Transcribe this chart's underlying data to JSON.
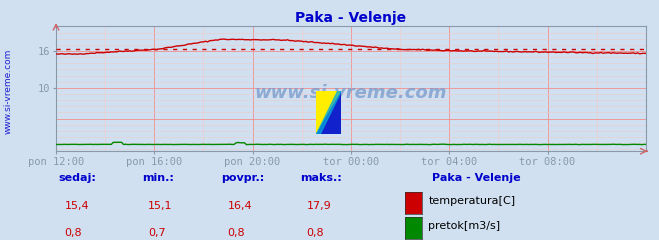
{
  "title": "Paka - Velenje",
  "title_color": "#0000cc",
  "bg_color": "#d0e0f0",
  "plot_bg_color": "#d0e0f0",
  "grid_color_major": "#ee9999",
  "grid_color_minor": "#eecccc",
  "watermark": "www.si-vreme.com",
  "x_labels": [
    "pon 12:00",
    "pon 16:00",
    "pon 20:00",
    "tor 00:00",
    "tor 04:00",
    "tor 08:00"
  ],
  "x_ticks": [
    0,
    48,
    96,
    144,
    192,
    240
  ],
  "x_max": 288,
  "ylim": [
    -0.3,
    20
  ],
  "temp_avg": 16.4,
  "temp_color": "#cc0000",
  "flow_color": "#008800",
  "legend_title": "Paka - Velenje",
  "legend_color": "#0000cc",
  "label_color": "#0000cc",
  "value_color": "#cc0000",
  "axis_color": "#8899aa",
  "sedaj_label": "sedaj:",
  "min_label": "min.:",
  "povpr_label": "povpr.:",
  "maks_label": "maks.:",
  "temp_sedaj": "15,4",
  "temp_min": "15,1",
  "temp_povpr": "16,4",
  "temp_maks": "17,9",
  "flow_sedaj": "0,8",
  "flow_min": "0,7",
  "flow_povpr": "0,8",
  "flow_maks": "0,8",
  "sidebar_text": "www.si-vreme.com",
  "sidebar_color": "#0000cc"
}
